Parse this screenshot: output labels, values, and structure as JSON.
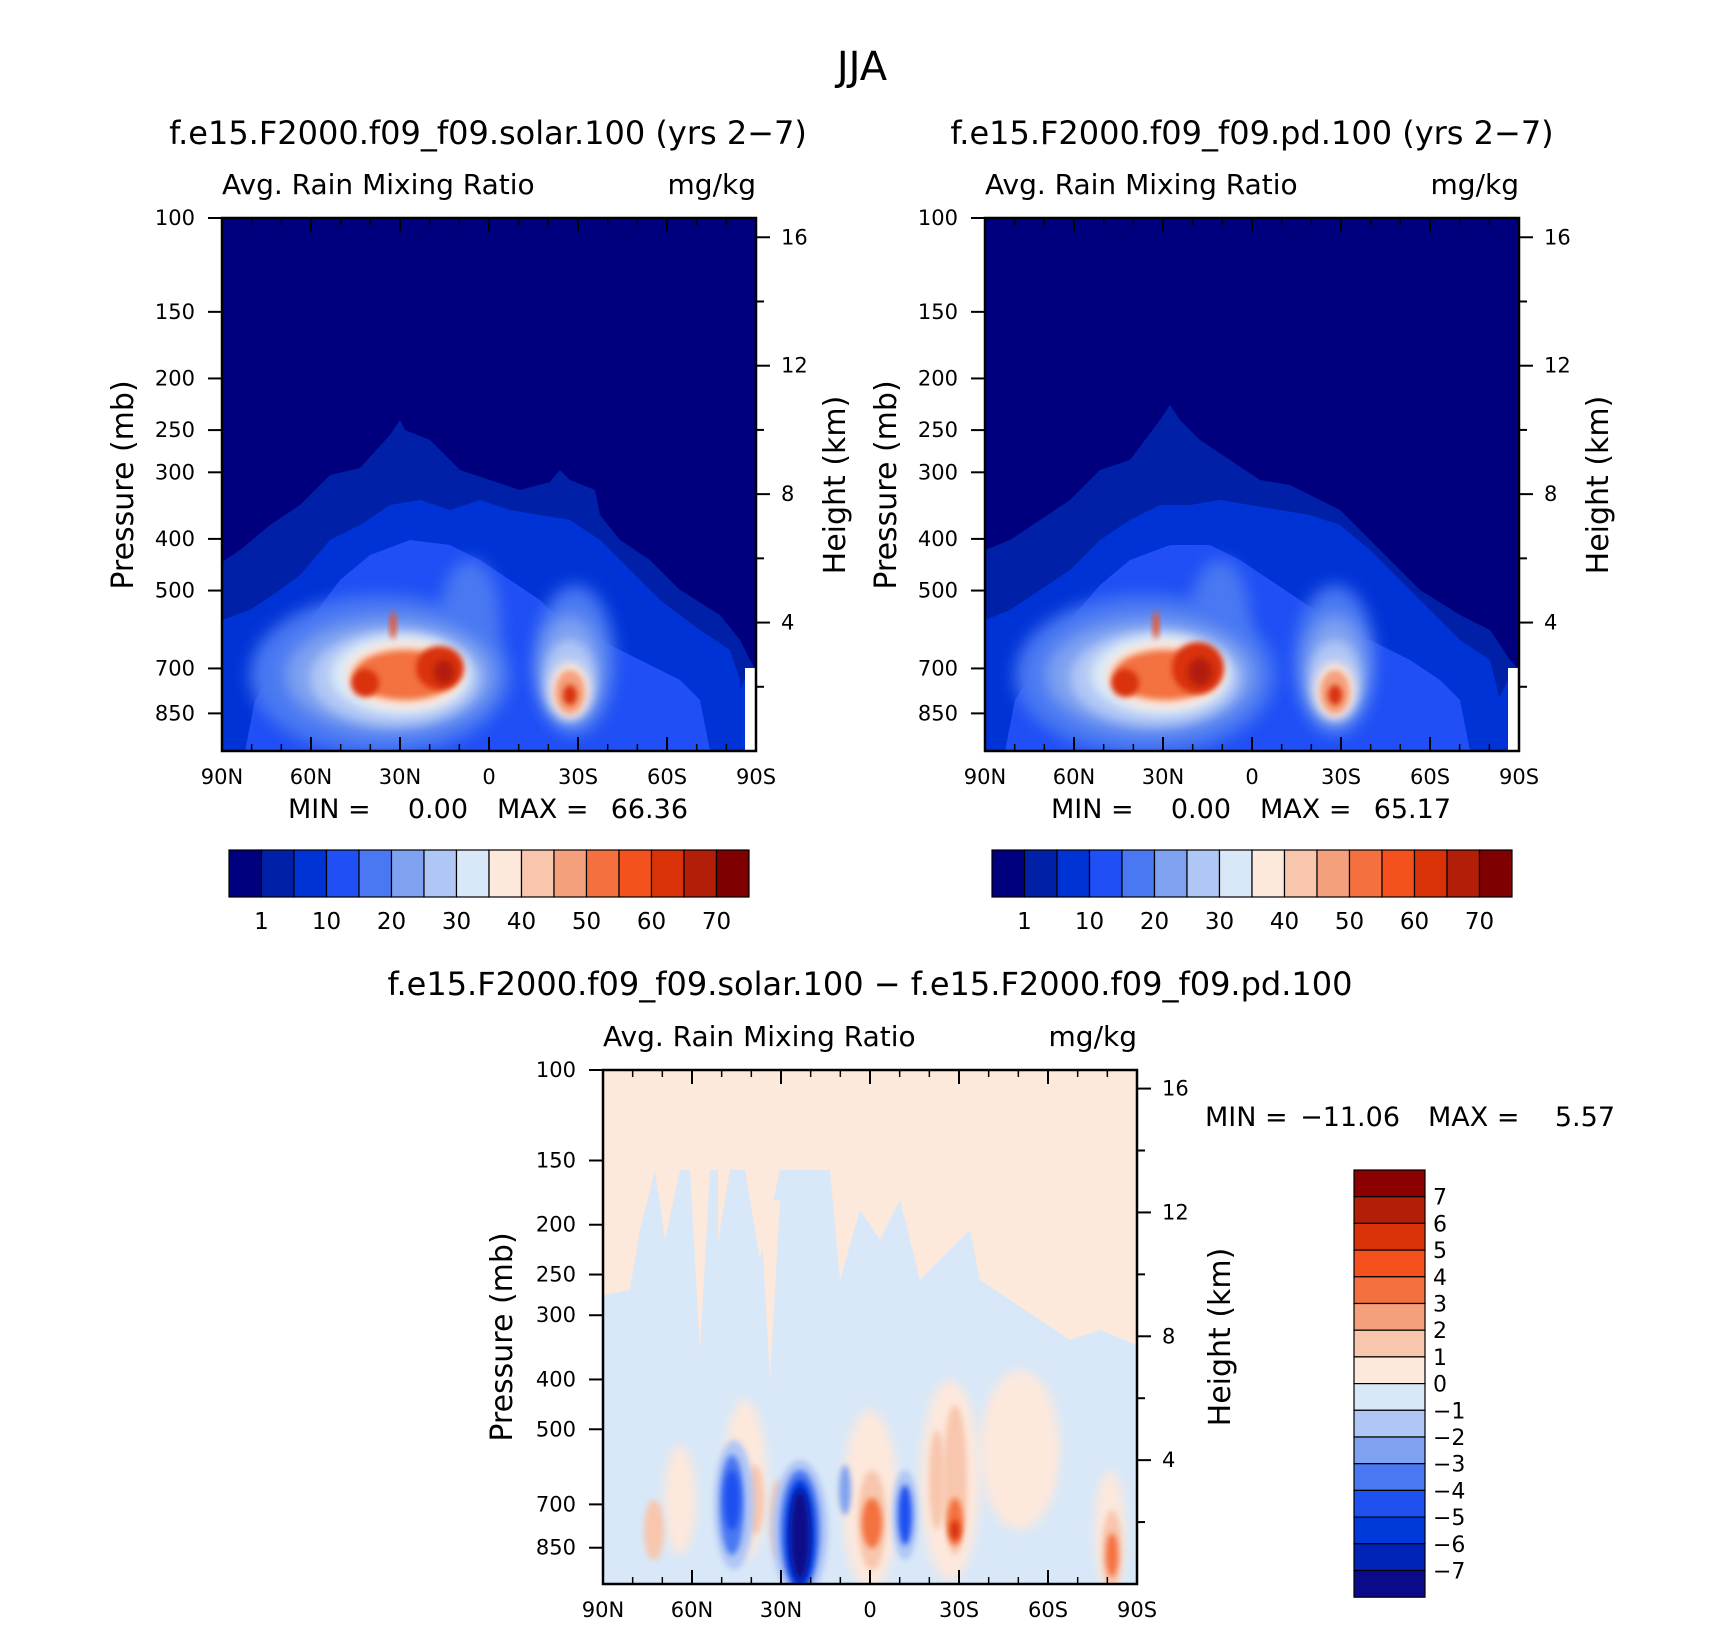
{
  "page_title": "JJA",
  "colors": {
    "seq_palette": [
      "#00007f",
      "#0020a8",
      "#0033d6",
      "#1f4ff5",
      "#4a78f2",
      "#7fa2f0",
      "#b0c6f5",
      "#d8e8f8",
      "#fde8dc",
      "#f8c6ad",
      "#f5a07c",
      "#f4713f",
      "#f4511e",
      "#d93208",
      "#b31e08",
      "#7f0000"
    ],
    "diff_palette": [
      "#0a0a8a",
      "#0024b8",
      "#0039d9",
      "#1f50f0",
      "#4a78f2",
      "#7fa2f0",
      "#b0c6f5",
      "#d8e8f8",
      "#fde8dc",
      "#f8c6ad",
      "#f5a07c",
      "#f4713f",
      "#f4511e",
      "#d93208",
      "#b31e08",
      "#8b0000"
    ]
  },
  "chart_data": [
    {
      "type": "heatmap",
      "title": "f.e15.F2000.f09_f09.solar.100 (yrs 2−7)",
      "variable": "Avg. Rain Mixing Ratio",
      "units": "mg/kg",
      "xlabel": "",
      "ylabel": "Pressure (mb)",
      "y2label": "Height (km)",
      "x_ticks": [
        "90N",
        "60N",
        "30N",
        "0",
        "30S",
        "60S",
        "90S"
      ],
      "x_range": [
        90,
        -90
      ],
      "y_ticks": [
        100,
        150,
        200,
        250,
        300,
        400,
        500,
        700,
        850
      ],
      "y2_ticks": [
        16,
        12,
        8,
        4
      ],
      "stats": {
        "min_label": "MIN =",
        "min": "0.00",
        "max_label": "MAX =",
        "max": "66.36"
      },
      "colorbar_labels": [
        "1",
        "10",
        "20",
        "30",
        "40",
        "50",
        "60",
        "70"
      ],
      "features": [
        {
          "lat": 35,
          "p": 690,
          "value": 60
        },
        {
          "lat": 18,
          "p": 680,
          "value": 66.36
        },
        {
          "lat": -28,
          "p": 710,
          "value": 50
        }
      ]
    },
    {
      "type": "heatmap",
      "title": "f.e15.F2000.f09_f09.pd.100 (yrs 2−7)",
      "variable": "Avg. Rain Mixing Ratio",
      "units": "mg/kg",
      "xlabel": "",
      "ylabel": "Pressure (mb)",
      "y2label": "Height (km)",
      "x_ticks": [
        "90N",
        "60N",
        "30N",
        "0",
        "30S",
        "60S",
        "90S"
      ],
      "x_range": [
        90,
        -90
      ],
      "y_ticks": [
        100,
        150,
        200,
        250,
        300,
        400,
        500,
        700,
        850
      ],
      "y2_ticks": [
        16,
        12,
        8,
        4
      ],
      "stats": {
        "min_label": "MIN =",
        "min": "0.00",
        "max_label": "MAX =",
        "max": "65.17"
      },
      "colorbar_labels": [
        "1",
        "10",
        "20",
        "30",
        "40",
        "50",
        "60",
        "70"
      ],
      "features": [
        {
          "lat": 35,
          "p": 690,
          "value": 58
        },
        {
          "lat": 18,
          "p": 680,
          "value": 65.17
        },
        {
          "lat": -28,
          "p": 710,
          "value": 48
        }
      ]
    },
    {
      "type": "heatmap",
      "title": "f.e15.F2000.f09_f09.solar.100 − f.e15.F2000.f09_f09.pd.100",
      "variable": "Avg. Rain Mixing Ratio",
      "units": "mg/kg",
      "xlabel": "",
      "ylabel": "Pressure (mb)",
      "y2label": "Height (km)",
      "x_ticks": [
        "90N",
        "60N",
        "30N",
        "0",
        "30S",
        "60S",
        "90S"
      ],
      "x_range": [
        90,
        -90
      ],
      "y_ticks": [
        100,
        150,
        200,
        250,
        300,
        400,
        500,
        700,
        850
      ],
      "y2_ticks": [
        16,
        12,
        8,
        4
      ],
      "stats": {
        "min_label": "MIN =",
        "min": "−11.06",
        "max_label": "MAX =",
        "max": "5.57"
      },
      "colorbar_labels": [
        "7",
        "6",
        "5",
        "4",
        "3",
        "2",
        "1",
        "0",
        "−1",
        "−2",
        "−3",
        "−4",
        "−5",
        "−6",
        "−7"
      ],
      "features": [
        {
          "lat": 23,
          "p": 700,
          "value": -11.06
        },
        {
          "lat": 48,
          "p": 650,
          "value": -5
        },
        {
          "lat": 12,
          "p": 700,
          "value": -3
        },
        {
          "lat": -13,
          "p": 680,
          "value": -4
        },
        {
          "lat": 0,
          "p": 700,
          "value": 3
        },
        {
          "lat": -29,
          "p": 700,
          "value": 5.57
        },
        {
          "lat": -81,
          "p": 800,
          "value": 3
        }
      ]
    }
  ]
}
